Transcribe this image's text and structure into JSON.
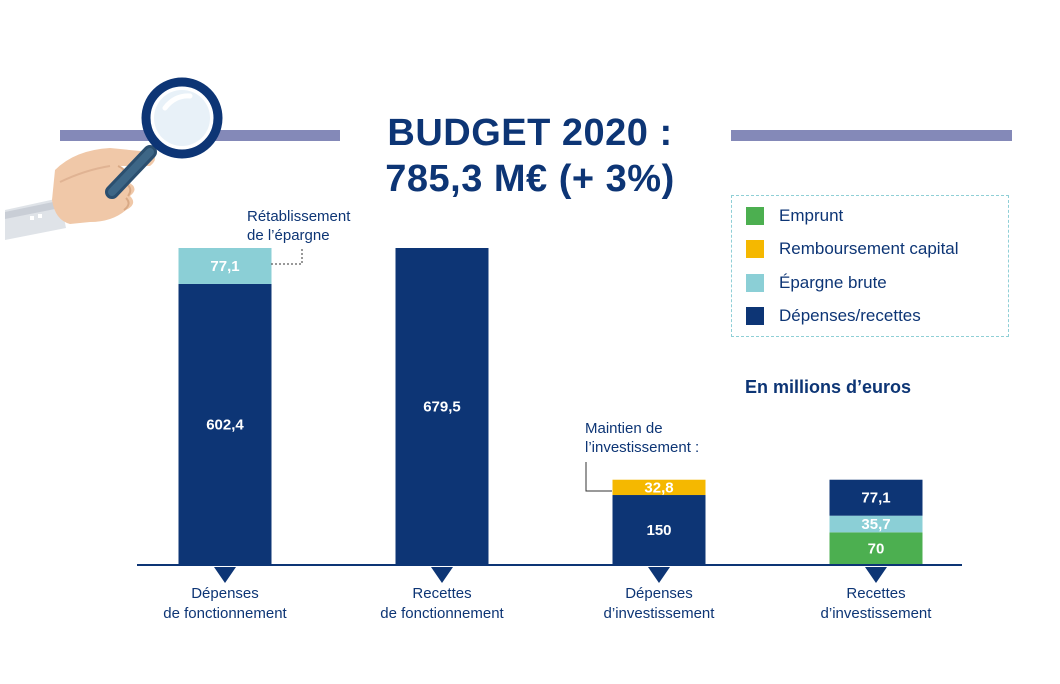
{
  "title": {
    "line1": "BUDGET 2020 :",
    "line2": "785,3 M€ (+ 3%)"
  },
  "unit_label": "En millions d’euros",
  "legend": [
    {
      "label": "Emprunt",
      "color": "#4caf50"
    },
    {
      "label": "Remboursement capital",
      "color": "#f5b800"
    },
    {
      "label": "Épargne brute",
      "color": "#8bcfd6"
    },
    {
      "label": "Dépenses/recettes",
      "color": "#0d3575"
    }
  ],
  "annotations": {
    "epargne": {
      "line1": "Rétablissement",
      "line2": "de l’épargne"
    },
    "investissement": {
      "line1": "Maintien de",
      "line2": "l’investissement :"
    }
  },
  "chart_data": {
    "type": "bar",
    "stacked": true,
    "title": "BUDGET 2020 : 785,3 M€ (+ 3%)",
    "unit": "En millions d’euros",
    "categories": [
      {
        "line1": "Dépenses",
        "line2": "de fonctionnement"
      },
      {
        "line1": "Recettes",
        "line2": "de fonctionnement"
      },
      {
        "line1": "Dépenses",
        "line2": "d’investissement"
      },
      {
        "line1": "Recettes",
        "line2": "d’investissement"
      }
    ],
    "bars": [
      {
        "segments": [
          {
            "series": "Dépenses/recettes",
            "value": 602.4,
            "label": "602,4",
            "color": "#0d3575",
            "text_color": "#ffffff"
          },
          {
            "series": "Épargne brute",
            "value": 77.1,
            "label": "77,1",
            "color": "#8bcfd6",
            "text_color": "#ffffff"
          }
        ]
      },
      {
        "segments": [
          {
            "series": "Dépenses/recettes",
            "value": 679.5,
            "label": "679,5",
            "color": "#0d3575",
            "text_color": "#ffffff"
          }
        ]
      },
      {
        "segments": [
          {
            "series": "Dépenses/recettes",
            "value": 150,
            "label": "150",
            "color": "#0d3575",
            "text_color": "#ffffff"
          },
          {
            "series": "Remboursement capital",
            "value": 32.8,
            "label": "32,8",
            "color": "#f5b800",
            "text_color": "#ffffff"
          }
        ]
      },
      {
        "segments": [
          {
            "series": "Emprunt",
            "value": 70,
            "label": "70",
            "color": "#4caf50",
            "text_color": "#ffffff"
          },
          {
            "series": "Épargne brute",
            "value": 35.7,
            "label": "35,7",
            "color": "#8bcfd6",
            "text_color": "#ffffff"
          },
          {
            "series": "Dépenses/recettes",
            "value": 77.1,
            "label": "77,1",
            "color": "#0d3575",
            "text_color": "#ffffff"
          }
        ]
      }
    ],
    "ylim": [
      0,
      679.5
    ]
  }
}
